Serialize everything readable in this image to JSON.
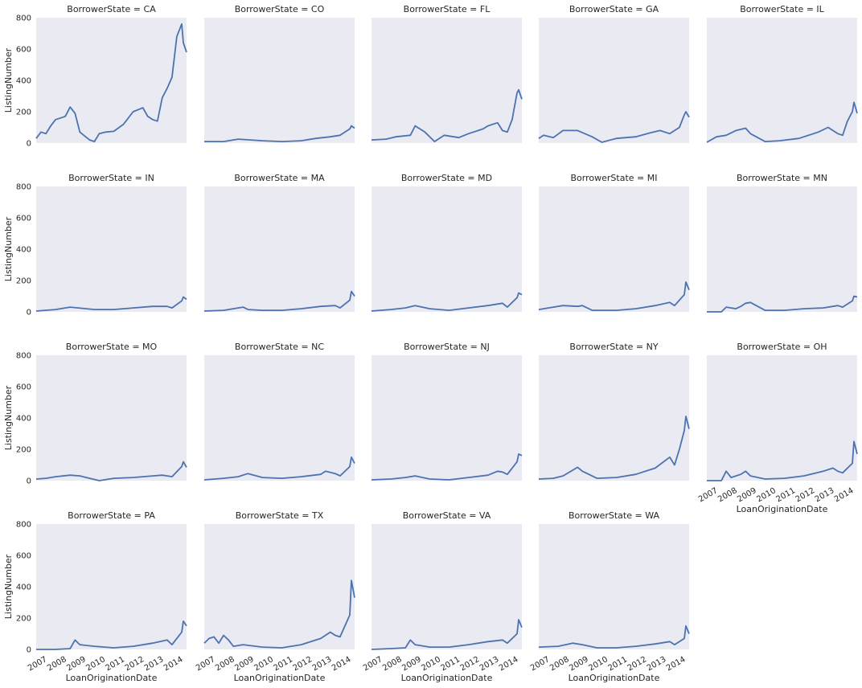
{
  "chart_data": {
    "type": "line",
    "layout": "facet-grid",
    "columns": 5,
    "facet_label_prefix": "BorrowerState = ",
    "xlabel": "LoanOriginationDate",
    "ylabel": "ListingNumber",
    "ylim": [
      0,
      800
    ],
    "yticks": [
      "0",
      "200",
      "400",
      "600",
      "800"
    ],
    "xlim": [
      "2006-06",
      "2014-03"
    ],
    "xticks": [
      "2007",
      "2008",
      "2009",
      "2010",
      "2011",
      "2012",
      "2013",
      "2014"
    ],
    "background": "#eaeaf2",
    "line_color": "#4c72b0",
    "grid": false,
    "facets": [
      {
        "state": "CA",
        "x": [
          "2006-06",
          "2006-09",
          "2006-12",
          "2007-03",
          "2007-06",
          "2007-09",
          "2007-12",
          "2008-03",
          "2008-06",
          "2008-09",
          "2008-12",
          "2009-03",
          "2009-06",
          "2009-09",
          "2010-01",
          "2010-06",
          "2010-12",
          "2011-06",
          "2011-12",
          "2012-03",
          "2012-06",
          "2012-09",
          "2012-12",
          "2013-03",
          "2013-06",
          "2013-09",
          "2013-12",
          "2014-01",
          "2014-03"
        ],
        "values": [
          30,
          70,
          60,
          110,
          150,
          160,
          170,
          230,
          190,
          70,
          45,
          20,
          10,
          60,
          70,
          75,
          120,
          200,
          225,
          170,
          150,
          140,
          290,
          350,
          420,
          680,
          760,
          640,
          580
        ]
      },
      {
        "state": "CO",
        "x": [
          "2006-06",
          "2007-06",
          "2008-03",
          "2009-06",
          "2010-06",
          "2011-06",
          "2012-03",
          "2012-12",
          "2013-06",
          "2013-12",
          "2014-01",
          "2014-03"
        ],
        "values": [
          10,
          10,
          25,
          15,
          10,
          15,
          30,
          40,
          50,
          90,
          110,
          95
        ]
      },
      {
        "state": "FL",
        "x": [
          "2006-06",
          "2007-03",
          "2007-09",
          "2008-06",
          "2008-09",
          "2009-03",
          "2009-09",
          "2010-03",
          "2010-12",
          "2011-06",
          "2012-03",
          "2012-06",
          "2012-12",
          "2013-03",
          "2013-06",
          "2013-09",
          "2013-12",
          "2014-01",
          "2014-03"
        ],
        "values": [
          20,
          25,
          40,
          50,
          110,
          70,
          10,
          50,
          35,
          60,
          90,
          110,
          130,
          80,
          70,
          150,
          320,
          340,
          280
        ]
      },
      {
        "state": "GA",
        "x": [
          "2006-06",
          "2006-09",
          "2007-03",
          "2007-09",
          "2008-06",
          "2009-03",
          "2009-09",
          "2010-06",
          "2011-06",
          "2012-03",
          "2012-09",
          "2013-03",
          "2013-09",
          "2013-12",
          "2014-01",
          "2014-03"
        ],
        "values": [
          30,
          50,
          35,
          80,
          80,
          40,
          5,
          30,
          40,
          65,
          80,
          60,
          100,
          180,
          200,
          165
        ]
      },
      {
        "state": "IL",
        "x": [
          "2006-06",
          "2006-12",
          "2007-06",
          "2007-12",
          "2008-06",
          "2008-09",
          "2009-06",
          "2010-03",
          "2011-03",
          "2012-03",
          "2012-09",
          "2013-03",
          "2013-06",
          "2013-09",
          "2013-12",
          "2014-01",
          "2014-03"
        ],
        "values": [
          5,
          40,
          50,
          80,
          95,
          60,
          10,
          15,
          30,
          70,
          100,
          60,
          50,
          140,
          200,
          260,
          190
        ]
      },
      {
        "state": "IN",
        "x": [
          "2006-06",
          "2007-06",
          "2008-03",
          "2009-06",
          "2010-06",
          "2011-06",
          "2012-06",
          "2013-03",
          "2013-06",
          "2013-12",
          "2014-01",
          "2014-03"
        ],
        "values": [
          5,
          15,
          30,
          15,
          15,
          25,
          35,
          35,
          25,
          70,
          95,
          80
        ]
      },
      {
        "state": "MA",
        "x": [
          "2006-06",
          "2007-06",
          "2008-06",
          "2008-09",
          "2009-06",
          "2010-06",
          "2011-06",
          "2012-06",
          "2013-03",
          "2013-06",
          "2013-12",
          "2014-01",
          "2014-03"
        ],
        "values": [
          5,
          10,
          30,
          15,
          10,
          10,
          20,
          35,
          40,
          25,
          75,
          130,
          100
        ]
      },
      {
        "state": "MD",
        "x": [
          "2006-06",
          "2007-06",
          "2008-03",
          "2008-09",
          "2009-06",
          "2010-06",
          "2011-06",
          "2012-06",
          "2013-03",
          "2013-06",
          "2013-12",
          "2014-01",
          "2014-03"
        ],
        "values": [
          5,
          15,
          25,
          40,
          20,
          10,
          25,
          40,
          55,
          30,
          90,
          120,
          110
        ]
      },
      {
        "state": "MI",
        "x": [
          "2006-06",
          "2007-03",
          "2007-09",
          "2008-06",
          "2008-09",
          "2009-03",
          "2010-06",
          "2011-06",
          "2012-06",
          "2013-03",
          "2013-06",
          "2013-12",
          "2014-01",
          "2014-03"
        ],
        "values": [
          15,
          30,
          40,
          35,
          40,
          10,
          10,
          20,
          40,
          60,
          40,
          110,
          190,
          140
        ]
      },
      {
        "state": "MN",
        "x": [
          "2006-06",
          "2007-03",
          "2007-06",
          "2007-12",
          "2008-03",
          "2008-06",
          "2008-09",
          "2009-06",
          "2010-06",
          "2011-06",
          "2012-06",
          "2013-03",
          "2013-06",
          "2013-12",
          "2014-01",
          "2014-03"
        ],
        "values": [
          0,
          0,
          30,
          20,
          35,
          55,
          60,
          10,
          10,
          20,
          25,
          40,
          30,
          70,
          100,
          95
        ]
      },
      {
        "state": "MO",
        "x": [
          "2006-06",
          "2006-12",
          "2007-06",
          "2008-03",
          "2008-09",
          "2009-03",
          "2009-09",
          "2010-06",
          "2011-06",
          "2012-06",
          "2012-12",
          "2013-03",
          "2013-06",
          "2013-12",
          "2014-01",
          "2014-03"
        ],
        "values": [
          10,
          15,
          25,
          35,
          30,
          15,
          0,
          15,
          20,
          30,
          35,
          30,
          25,
          90,
          120,
          85
        ]
      },
      {
        "state": "NC",
        "x": [
          "2006-06",
          "2007-06",
          "2008-03",
          "2008-09",
          "2009-06",
          "2010-06",
          "2011-06",
          "2012-06",
          "2012-09",
          "2013-03",
          "2013-06",
          "2013-12",
          "2014-01",
          "2014-03"
        ],
        "values": [
          5,
          15,
          25,
          45,
          20,
          15,
          25,
          40,
          60,
          45,
          30,
          90,
          150,
          110
        ]
      },
      {
        "state": "NJ",
        "x": [
          "2006-06",
          "2007-06",
          "2008-03",
          "2008-09",
          "2009-06",
          "2010-06",
          "2011-06",
          "2012-06",
          "2012-12",
          "2013-03",
          "2013-06",
          "2013-12",
          "2014-01",
          "2014-03"
        ],
        "values": [
          5,
          10,
          20,
          30,
          10,
          5,
          20,
          35,
          60,
          55,
          40,
          120,
          170,
          160
        ]
      },
      {
        "state": "NY",
        "x": [
          "2006-06",
          "2007-03",
          "2007-09",
          "2008-06",
          "2008-09",
          "2009-06",
          "2010-06",
          "2011-06",
          "2012-06",
          "2013-03",
          "2013-06",
          "2013-09",
          "2013-12",
          "2014-01",
          "2014-03"
        ],
        "values": [
          10,
          15,
          30,
          85,
          60,
          15,
          20,
          40,
          80,
          150,
          100,
          200,
          320,
          410,
          330
        ]
      },
      {
        "state": "OH",
        "x": [
          "2006-06",
          "2007-03",
          "2007-06",
          "2007-09",
          "2008-03",
          "2008-06",
          "2008-09",
          "2009-06",
          "2010-06",
          "2011-06",
          "2012-06",
          "2012-12",
          "2013-03",
          "2013-06",
          "2013-12",
          "2014-01",
          "2014-03"
        ],
        "values": [
          0,
          0,
          60,
          20,
          40,
          60,
          30,
          10,
          15,
          30,
          60,
          80,
          60,
          50,
          110,
          250,
          170
        ]
      },
      {
        "state": "PA",
        "x": [
          "2006-06",
          "2007-06",
          "2008-03",
          "2008-06",
          "2008-09",
          "2009-06",
          "2010-06",
          "2011-06",
          "2012-06",
          "2013-03",
          "2013-06",
          "2013-12",
          "2014-01",
          "2014-03"
        ],
        "values": [
          0,
          0,
          5,
          60,
          30,
          20,
          10,
          20,
          40,
          60,
          30,
          110,
          180,
          150
        ]
      },
      {
        "state": "TX",
        "x": [
          "2006-06",
          "2006-09",
          "2006-12",
          "2007-03",
          "2007-06",
          "2007-09",
          "2007-12",
          "2008-06",
          "2009-06",
          "2010-06",
          "2011-06",
          "2012-06",
          "2012-12",
          "2013-03",
          "2013-06",
          "2013-12",
          "2014-01",
          "2014-03"
        ],
        "values": [
          40,
          70,
          80,
          40,
          90,
          60,
          20,
          30,
          15,
          10,
          30,
          70,
          110,
          90,
          80,
          220,
          440,
          330
        ]
      },
      {
        "state": "VA",
        "x": [
          "2006-06",
          "2007-06",
          "2008-03",
          "2008-06",
          "2008-09",
          "2009-06",
          "2010-06",
          "2011-06",
          "2012-06",
          "2013-03",
          "2013-06",
          "2013-12",
          "2014-01",
          "2014-03"
        ],
        "values": [
          0,
          5,
          10,
          60,
          30,
          15,
          15,
          30,
          50,
          60,
          40,
          100,
          190,
          140
        ]
      },
      {
        "state": "WA",
        "x": [
          "2006-06",
          "2007-06",
          "2008-03",
          "2008-09",
          "2009-06",
          "2010-06",
          "2011-06",
          "2012-06",
          "2013-03",
          "2013-06",
          "2013-12",
          "2014-01",
          "2014-03"
        ],
        "values": [
          15,
          20,
          40,
          30,
          10,
          10,
          20,
          35,
          50,
          30,
          70,
          150,
          100
        ]
      }
    ]
  }
}
